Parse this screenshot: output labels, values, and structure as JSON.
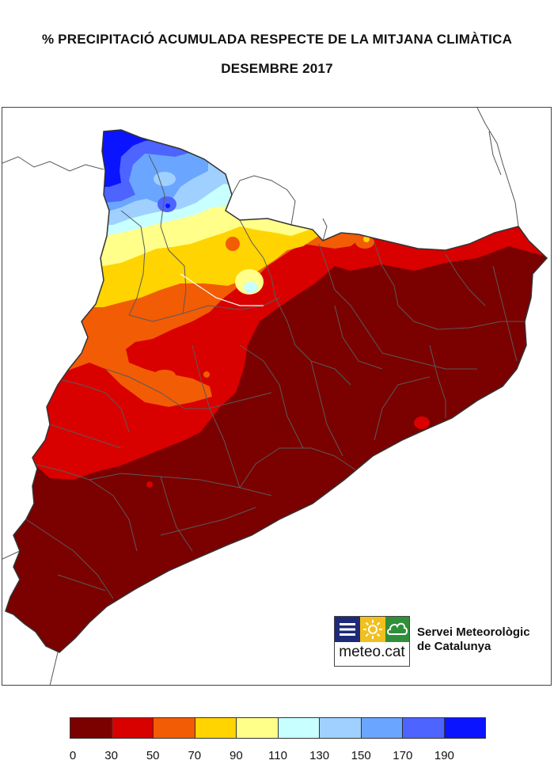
{
  "header": {
    "title": "% PRECIPITACIÓ ACUMULADA RESPECTE DE LA MITJANA CLIMÀTICA",
    "subtitle": "DESEMBRE 2017"
  },
  "logo": {
    "brand": "meteo.cat",
    "agency_line1": "Servei Meteorològic",
    "agency_line2": "de Catalunya"
  },
  "legend": {
    "colors": [
      "#7b0000",
      "#d90000",
      "#f25c05",
      "#ffd400",
      "#ffff8a",
      "#c8ffff",
      "#9fd0ff",
      "#6aa6ff",
      "#4d64ff",
      "#0a14ff"
    ],
    "ticks": [
      "0",
      "30",
      "50",
      "70",
      "90",
      "110",
      "130",
      "150",
      "170",
      "190"
    ]
  },
  "icons": {
    "logo_left": "menu-lines-icon",
    "logo_middle": "sun-icon",
    "logo_right": "cloud-icon"
  }
}
